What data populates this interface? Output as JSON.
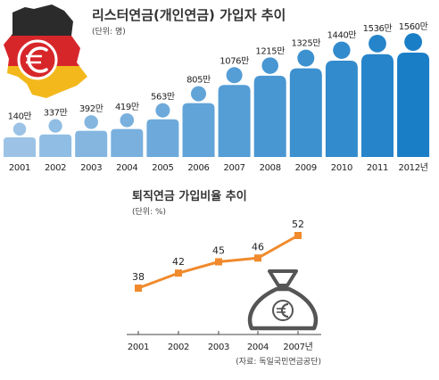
{
  "chart_data": [
    {
      "type": "bar",
      "title": "리스터연금(개인연금) 가입자 추이",
      "unit": "(단위: 명)",
      "categories": [
        "2001",
        "2002",
        "2003",
        "2004",
        "2005",
        "2006",
        "2007",
        "2008",
        "2009",
        "2010",
        "2011",
        "2012년"
      ],
      "value_labels": [
        "140만",
        "337만",
        "392만",
        "419만",
        "563만",
        "805만",
        "1076만",
        "1215만",
        "1325만",
        "1440만",
        "1536만",
        "1560만"
      ],
      "series": [
        {
          "values": [
            140,
            337,
            392,
            419,
            563,
            805,
            1076,
            1215,
            1325,
            1440,
            1536,
            1560
          ]
        }
      ],
      "ylim": [
        0,
        1600
      ],
      "colors": {
        "light": "#9cc3e6",
        "dark": "#1a7ec7"
      },
      "decoration": {
        "icon": "person-icon",
        "map": "germany-flag-map-icon",
        "emblem": "euro-icon",
        "flag_colors": [
          "#2b2b2b",
          "#d7262a",
          "#f2b81c"
        ]
      }
    },
    {
      "type": "line",
      "title": "퇴직연금 가입비율 추이",
      "unit": "(단위: %)",
      "categories": [
        "2001",
        "2002",
        "2003",
        "2004",
        "2007년"
      ],
      "values": [
        38,
        42,
        45,
        46,
        52
      ],
      "ylim": [
        30,
        55
      ],
      "color": "#f08a2c",
      "decoration": {
        "icon": "euro-money-bag-icon"
      },
      "source": "(자료: 독일국민연금공단)"
    }
  ]
}
